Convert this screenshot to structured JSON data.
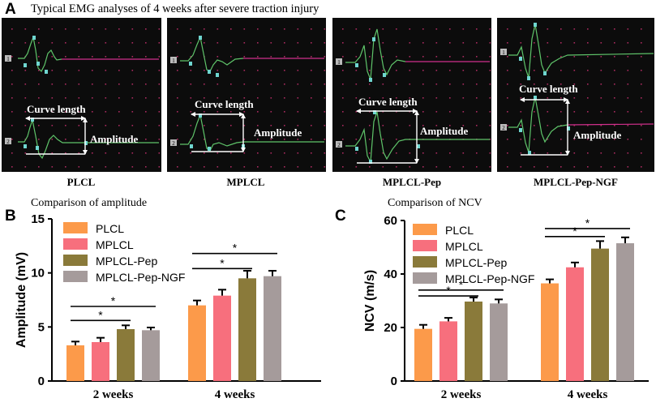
{
  "panel_a": {
    "letter": "A",
    "title": "Typical EMG analyses of 4 weeks after severe traction injury",
    "panels": [
      {
        "label": "PLCL",
        "curve_length_label": "Curve length",
        "amplitude_label": "Amplitude"
      },
      {
        "label": "MPLCL",
        "curve_length_label": "Curve length",
        "amplitude_label": "Amplitude"
      },
      {
        "label": "MPLCL-Pep",
        "curve_length_label": "Curve length",
        "amplitude_label": "Amplitude"
      },
      {
        "label": "MPLCL-Pep-NGF",
        "curve_length_label": "Curve length",
        "amplitude_label": "Amplitude"
      }
    ],
    "channel_markers": [
      "1",
      "2"
    ],
    "colors": {
      "trace_green": "#5fc46a",
      "trace_magenta": "#d0308c",
      "grid_dot": "#c0306a",
      "marker_cyan": "#6fd6d0",
      "bg": "#0c0c0c"
    }
  },
  "chart_data": [
    {
      "letter": "B",
      "type": "bar",
      "title": "Comparison of amplitude",
      "xlabel": "",
      "ylabel": "Amplitude (mV)",
      "ylim": [
        0,
        15
      ],
      "yticks": [
        "0",
        "5",
        "10",
        "15"
      ],
      "categories": [
        "2 weeks",
        "4 weeks"
      ],
      "series": [
        {
          "name": "PLCL",
          "color": "#fc9a4a",
          "values": [
            3.3,
            7.0
          ],
          "errors": [
            0.35,
            0.45
          ]
        },
        {
          "name": "MPLCL",
          "color": "#f76f7d",
          "values": [
            3.6,
            7.9
          ],
          "errors": [
            0.4,
            0.55
          ]
        },
        {
          "name": "MPLCL-Pep",
          "color": "#8a7a3a",
          "values": [
            4.8,
            9.5
          ],
          "errors": [
            0.35,
            0.7
          ]
        },
        {
          "name": "MPLCL-Pep-NGF",
          "color": "#a59b9b",
          "values": [
            4.7,
            9.7
          ],
          "errors": [
            0.25,
            0.5
          ]
        }
      ],
      "significance": [
        {
          "category": 0,
          "from": 0,
          "to": 3,
          "label": "*",
          "y": 6.9
        },
        {
          "category": 0,
          "from": 0,
          "to": 2,
          "label": "*",
          "y": 5.6
        },
        {
          "category": 1,
          "from": 0,
          "to": 3,
          "label": "*",
          "y": 11.8
        },
        {
          "category": 1,
          "from": 0,
          "to": 2,
          "label": "*",
          "y": 10.4
        }
      ],
      "legend": "top-left"
    },
    {
      "letter": "C",
      "type": "bar",
      "title": "Comparison of NCV",
      "xlabel": "",
      "ylabel": "NCV (m/s)",
      "ylim": [
        0,
        60
      ],
      "yticks": [
        "0",
        "20",
        "40",
        "60"
      ],
      "categories": [
        "2 weeks",
        "4 weeks"
      ],
      "series": [
        {
          "name": "PLCL",
          "color": "#fc9a4a",
          "values": [
            19.5,
            36.5
          ],
          "errors": [
            1.5,
            1.5
          ]
        },
        {
          "name": "MPLCL",
          "color": "#f76f7d",
          "values": [
            22.3,
            42.5
          ],
          "errors": [
            1.3,
            1.8
          ]
        },
        {
          "name": "MPLCL-Pep",
          "color": "#8a7a3a",
          "values": [
            29.7,
            49.5
          ],
          "errors": [
            1.5,
            2.8
          ]
        },
        {
          "name": "MPLCL-Pep-NGF",
          "color": "#a59b9b",
          "values": [
            29.0,
            51.5
          ],
          "errors": [
            1.5,
            2.2
          ]
        }
      ],
      "significance": [
        {
          "category": 0,
          "from": 0,
          "to": 3,
          "label": "*",
          "y": 34.0
        },
        {
          "category": 0,
          "from": 0,
          "to": 2,
          "label": "*",
          "y": 31.8
        },
        {
          "category": 1,
          "from": 0,
          "to": 3,
          "label": "*",
          "y": 57.0
        },
        {
          "category": 1,
          "from": 0,
          "to": 2,
          "label": "*",
          "y": 54.0
        }
      ],
      "legend": "top-left"
    }
  ]
}
